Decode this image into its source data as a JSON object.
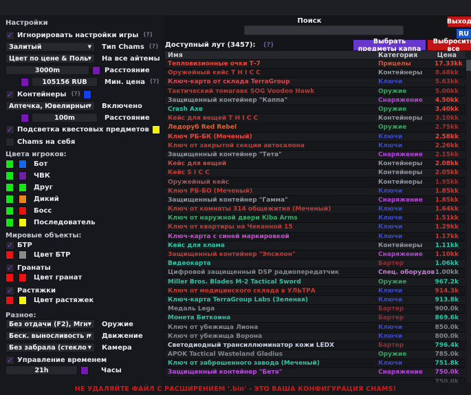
{
  "topbar": {
    "search_label": "Поиск",
    "search_value": "",
    "exit_button": "Выход",
    "lang_button": "RU",
    "kappa_button": "Выбрать предметы каппа",
    "drop_all_button": "Выбросить все"
  },
  "settings": {
    "title": "Настройки",
    "ignore_game_settings": {
      "label": "Игнорировать настройки игры",
      "help": "(?)",
      "checked": true
    },
    "chams_type": {
      "value": "Залитый",
      "label": "Тип Chams",
      "help": "(?)"
    },
    "all_items": {
      "value": "Цвет по цене & Пользователь",
      "label": "На все айтемы"
    },
    "distance": {
      "value": "3000m",
      "label": "Расстояние",
      "swatch": "#7a16b8"
    },
    "min_price": {
      "value": "105156 RUB",
      "label": "Мин. цена",
      "help": "(?)",
      "swatch": "#7a16b8"
    },
    "containers": {
      "label": "Контейнеры",
      "help": "(?)",
      "checked": true,
      "swatch": "#1240ee"
    },
    "enabled_dropdown": {
      "value": "Аптечка, Ювелирные и...",
      "label": "Включено"
    },
    "distance2": {
      "value": "100m",
      "label": "Расстояние",
      "swatch": "#7a16b8"
    },
    "quest_highlight": {
      "label": "Подсветка квестовых предметов",
      "checked": true,
      "swatch": "#f2f20a"
    },
    "chams_self": {
      "label": "Chams на себя",
      "checked": false
    },
    "player_colors": {
      "title": "Цвета игроков:",
      "rows": [
        {
          "label": "Бот",
          "c1": "#17e517",
          "c2": "#1668e8"
        },
        {
          "label": "ЧВК",
          "c1": "#17e517",
          "c2": "#6e1fa0"
        },
        {
          "label": "Друг",
          "c1": "#17e517",
          "c2": "#17e517"
        },
        {
          "label": "Дикий",
          "c1": "#17e517",
          "c2": "#e8861c"
        },
        {
          "label": "Босс",
          "c1": "#17e517",
          "c2": "#ee1111"
        },
        {
          "label": "Последователь",
          "c1": "#17e517",
          "c2": "#f2f20a"
        }
      ]
    },
    "world_objects": {
      "title": "Мировые объекты:",
      "btr": {
        "label": "БТР",
        "checked": true
      },
      "btr_color": {
        "label": "Цвет БТР",
        "c1": "#ee1111",
        "c2": "#8a8a8a"
      },
      "grenades": {
        "label": "Гранаты",
        "checked": true
      },
      "grenade_color": {
        "label": "Цвет гранат",
        "c1": "#ee1111",
        "c2": "#ee1111"
      },
      "tripwires": {
        "label": "Растяжки",
        "checked": true
      },
      "tripwire_color": {
        "label": "Цвет растяжек",
        "c1": "#ee1111",
        "c2": "#f2f20a"
      }
    },
    "misc": {
      "title": "Разное:",
      "weapon": {
        "value": "Без отдачи (F2), Мгновенное п",
        "label": "Оружие"
      },
      "movement": {
        "value": "Беск. выносливость и нет уста",
        "label": "Движение"
      },
      "camera": {
        "value": "Без забрала (стекло шлема)",
        "label": "Камера"
      },
      "time_control": {
        "label": "Управление временем",
        "checked": true
      },
      "hours": {
        "value": "21h",
        "label": "Часы",
        "swatch": "#7a16b8"
      }
    }
  },
  "loot": {
    "title": "Доступный лут (3457):",
    "help": "(?)",
    "columns": {
      "name": "Имя",
      "category": "Категория",
      "price": "Цена"
    },
    "category_colors": {
      "Прицелы": "#c45a40",
      "Контейнеры": "#8e939c",
      "Ключи": "#3947c8",
      "Оружие": "#3f9e62",
      "Снаряжение": "#b93fe0",
      "Бартер": "#8c2f38",
      "Спец. оборудование": "#c778d8"
    },
    "rows": [
      {
        "name": "Тепловизионные очки Т-7",
        "nc": "#e8453a",
        "cat": "Прицелы",
        "price": "17.33kk",
        "pc": "#e8453a"
      },
      {
        "name": "Оружейный кейс T H I C C",
        "nc": "#c23a32",
        "cat": "Контейнеры",
        "price": "8.48kk",
        "pc": "#a03330"
      },
      {
        "name": "Ключ-карта от склада TerraGroup",
        "nc": "#d4494f",
        "cat": "Ключи",
        "price": "5.63kk",
        "pc": "#a03330"
      },
      {
        "name": "Тактический томагавк SOG Voodoo Hawk",
        "nc": "#a8403c",
        "cat": "Оружие",
        "price": "5.00kk",
        "pc": "#a03330"
      },
      {
        "name": "Защищенный контейнер \"Каппа\"",
        "nc": "#8e939c",
        "cat": "Снаряжение",
        "price": "4.50kk",
        "pc": "#e8453a"
      },
      {
        "name": "Crash Axe",
        "nc": "#2cc2a5",
        "cat": "Оружие",
        "price": "3.40kk",
        "pc": "#e8453a"
      },
      {
        "name": "Кейс для вещей T H I C C",
        "nc": "#c23a32",
        "cat": "Контейнеры",
        "price": "3.10kk",
        "pc": "#a03330"
      },
      {
        "name": "Ледоруб Red Rebel",
        "nc": "#d4663a",
        "cat": "Оружие",
        "price": "2.75kk",
        "pc": "#a03330"
      },
      {
        "name": "Ключ РБ-БК (Меченый)",
        "nc": "#e8453a",
        "cat": "Ключи",
        "price": "2.58kk",
        "pc": "#e8453a"
      },
      {
        "name": "Ключ от закрытой секции автосалона",
        "nc": "#c23a32",
        "cat": "Ключи",
        "price": "2.26kk",
        "pc": "#c23a32"
      },
      {
        "name": "Защищенный контейнер \"Тета\"",
        "nc": "#8e939c",
        "cat": "Снаряжение",
        "price": "2.15kk",
        "pc": "#a03330"
      },
      {
        "name": "Кейс для вещей",
        "nc": "#c94a42",
        "cat": "Контейнеры",
        "price": "2.08kk",
        "pc": "#e8453a"
      },
      {
        "name": "Кейс S I C C",
        "nc": "#c23a32",
        "cat": "Контейнеры",
        "price": "2.05kk",
        "pc": "#c23a32"
      },
      {
        "name": "Оружейный кейс",
        "nc": "#8f5a60",
        "cat": "Контейнеры",
        "price": "1.95kk",
        "pc": "#9e302e"
      },
      {
        "name": "Ключ РБ-БО (Меченый)",
        "nc": "#c23a32",
        "cat": "Ключи",
        "price": "1.85kk",
        "pc": "#c23a32"
      },
      {
        "name": "Защищенный контейнер \"Гамма\"",
        "nc": "#8e939c",
        "cat": "Снаряжение",
        "price": "1.85kk",
        "pc": "#c23a32"
      },
      {
        "name": "Ключ от комнаты 314 общежития (Меченый)",
        "nc": "#c23a32",
        "cat": "Ключи",
        "price": "1.64kk",
        "pc": "#c23a32"
      },
      {
        "name": "Ключ от наружной двери Kiba Arms",
        "nc": "#3aa86a",
        "cat": "Ключи",
        "price": "1.51kk",
        "pc": "#c23a32"
      },
      {
        "name": "Ключ от квартиры на Чеканной 15",
        "nc": "#c23a32",
        "cat": "Ключи",
        "price": "1.29kk",
        "pc": "#c23a32"
      },
      {
        "name": "Ключ-карта с синей маркировкой",
        "nc": "#c94ad0",
        "cat": "Ключи",
        "price": "1.17kk",
        "pc": "#c23a32"
      },
      {
        "name": "Кейс для хлама",
        "nc": "#2cc2a5",
        "cat": "Контейнеры",
        "price": "1.11kk",
        "pc": "#2cc2a5"
      },
      {
        "name": "Защищенный контейнер \"Эпсилон\"",
        "nc": "#c23a32",
        "cat": "Снаряжение",
        "price": "1.10kk",
        "pc": "#c23a32"
      },
      {
        "name": "Видеокарта",
        "nc": "#2cc2a5",
        "cat": "Бартер",
        "price": "1.06kk",
        "pc": "#2cc2a5"
      },
      {
        "name": "Цифровой защищенный DSP радиопередатчик",
        "nc": "#82868e",
        "cat": "Спец. оборудование",
        "price": "1.00kk",
        "pc": "#82868e"
      },
      {
        "name": "Miller Bros. Blades M-2 Tactical Sword",
        "nc": "#2cc2a5",
        "cat": "Оружие",
        "price": "967.2k",
        "pc": "#2cc2a5"
      },
      {
        "name": "Ключ от медицинского склада в УЛЬТРА",
        "nc": "#c23a32",
        "cat": "Ключи",
        "price": "914.3k",
        "pc": "#c23a32"
      },
      {
        "name": "Ключ-карта TerraGroup Labs (Зеленая)",
        "nc": "#2cc2a5",
        "cat": "Ключи",
        "price": "913.8k",
        "pc": "#2cc2a5"
      },
      {
        "name": "Медаль Lega",
        "nc": "#82868e",
        "cat": "Бартер",
        "price": "900.0k",
        "pc": "#82868e"
      },
      {
        "name": "Монета Биткоина",
        "nc": "#2cc2a5",
        "cat": "Бартер",
        "price": "869.6k",
        "pc": "#2cc2a5"
      },
      {
        "name": "Ключ от убежища Лиона",
        "nc": "#82868e",
        "cat": "Ключи",
        "price": "850.0k",
        "pc": "#82868e"
      },
      {
        "name": "Ключ от убежища Ворона",
        "nc": "#82868e",
        "cat": "Ключи",
        "price": "800.0k",
        "pc": "#82868e"
      },
      {
        "name": "Светодиодный трансиллюминатор кожи LEDX",
        "nc": "#c9d2e4",
        "cat": "Бартер",
        "price": "796.4k",
        "pc": "#2cc2a5"
      },
      {
        "name": "APOK Tactical Wasteland Gladius",
        "nc": "#82868e",
        "cat": "Оружие",
        "price": "785.0k",
        "pc": "#82868e"
      },
      {
        "name": "Ключ от заброшенного завода (Меченый)",
        "nc": "#2cc2a5",
        "cat": "Ключи",
        "price": "751.8k",
        "pc": "#2cc2a5"
      },
      {
        "name": "Защищенный контейнер \"Бета\"",
        "nc": "#bc4ce0",
        "cat": "Снаряжение",
        "price": "750.0k",
        "pc": "#bc4ce0"
      },
      {
        "name": "",
        "nc": "#4c4f56",
        "cat": "",
        "price": "750.0k",
        "pc": "#4c4f56"
      }
    ]
  },
  "bottombar": {
    "warning": "НЕ УДАЛЯЙТЕ ФАЙЛ С РАСШИРЕНИЕМ '.bin'  - ЭТО ВАША КОНФИГУРАЦИЯ CHAMS!"
  }
}
